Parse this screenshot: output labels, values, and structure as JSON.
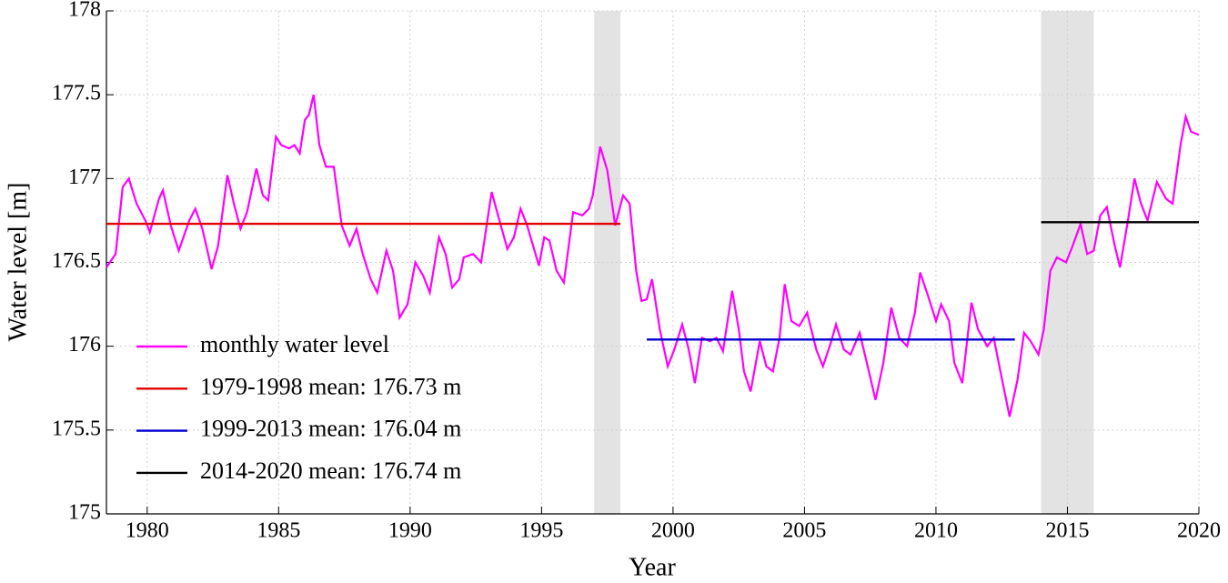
{
  "chart_data": {
    "type": "line",
    "xlabel": "Year",
    "ylabel": "Water level [m]",
    "xlim": [
      1978.45,
      2020
    ],
    "ylim": [
      175,
      178
    ],
    "xticks": [
      1980,
      1985,
      1990,
      1995,
      2000,
      2005,
      2010,
      2015,
      2020
    ],
    "yticks": [
      175,
      175.5,
      176,
      176.5,
      177,
      177.5,
      178
    ],
    "grid": true,
    "legend": "lower left",
    "shaded": [
      [
        1997,
        1998
      ],
      [
        2014,
        2016
      ]
    ],
    "shade_color": "#e3e3e3",
    "series": [
      {
        "name": "monthly water level",
        "color": "#ff00ff",
        "x": [
          1978.45,
          1978.8,
          1979.07,
          1979.3,
          1979.6,
          1979.93,
          1980.1,
          1980.45,
          1980.6,
          1980.9,
          1981.2,
          1981.6,
          1981.83,
          1982.1,
          1982.45,
          1982.7,
          1983.05,
          1983.3,
          1983.55,
          1983.8,
          1984.15,
          1984.4,
          1984.6,
          1984.9,
          1985.1,
          1985.4,
          1985.6,
          1985.8,
          1986.0,
          1986.15,
          1986.33,
          1986.55,
          1986.8,
          1987.1,
          1987.4,
          1987.7,
          1987.96,
          1988.2,
          1988.5,
          1988.75,
          1989.1,
          1989.35,
          1989.6,
          1989.9,
          1990.2,
          1990.5,
          1990.75,
          1991.1,
          1991.35,
          1991.6,
          1991.87,
          1992.04,
          1992.4,
          1992.7,
          1993.1,
          1993.4,
          1993.7,
          1993.95,
          1994.2,
          1994.45,
          1994.9,
          1995.1,
          1995.3,
          1995.57,
          1995.85,
          1996.2,
          1996.55,
          1996.8,
          1996.95,
          1997.23,
          1997.5,
          1997.8,
          1998.1,
          1998.35,
          1998.6,
          1998.8,
          1999.0,
          1999.2,
          1999.5,
          1999.8,
          2000.05,
          2000.35,
          2000.6,
          2000.83,
          2001.1,
          2001.4,
          2001.65,
          2001.9,
          2002.25,
          2002.5,
          2002.7,
          2002.95,
          2003.3,
          2003.55,
          2003.8,
          2004.05,
          2004.25,
          2004.5,
          2004.8,
          2005.1,
          2005.45,
          2005.7,
          2006.0,
          2006.2,
          2006.5,
          2006.75,
          2007.1,
          2007.45,
          2007.7,
          2008.0,
          2008.3,
          2008.6,
          2008.9,
          2009.2,
          2009.4,
          2009.7,
          2010.0,
          2010.2,
          2010.5,
          2010.7,
          2011.0,
          2011.35,
          2011.6,
          2011.95,
          2012.2,
          2012.45,
          2012.8,
          2013.1,
          2013.35,
          2013.6,
          2013.9,
          2014.1,
          2014.35,
          2014.6,
          2014.95,
          2015.2,
          2015.5,
          2015.75,
          2016.0,
          2016.25,
          2016.5,
          2016.8,
          2017.0,
          2017.3,
          2017.55,
          2017.8,
          2018.05,
          2018.4,
          2018.75,
          2019.0,
          2019.3,
          2019.5,
          2019.7,
          2020.0
        ],
        "values": [
          176.47,
          176.55,
          176.95,
          177.0,
          176.85,
          176.75,
          176.68,
          176.88,
          176.93,
          176.72,
          176.57,
          176.75,
          176.82,
          176.7,
          176.46,
          176.6,
          177.02,
          176.85,
          176.7,
          176.8,
          177.06,
          176.9,
          176.87,
          177.25,
          177.2,
          177.18,
          177.2,
          177.15,
          177.35,
          177.38,
          177.5,
          177.2,
          177.07,
          177.07,
          176.72,
          176.6,
          176.7,
          176.55,
          176.4,
          176.32,
          176.57,
          176.45,
          176.17,
          176.25,
          176.5,
          176.42,
          176.32,
          176.65,
          176.55,
          176.35,
          176.4,
          176.53,
          176.55,
          176.5,
          176.92,
          176.75,
          176.58,
          176.65,
          176.82,
          176.72,
          176.48,
          176.65,
          176.63,
          176.45,
          176.38,
          176.8,
          176.78,
          176.82,
          176.9,
          177.19,
          177.05,
          176.72,
          176.9,
          176.85,
          176.45,
          176.27,
          176.28,
          176.4,
          176.1,
          175.88,
          175.98,
          176.13,
          175.98,
          175.78,
          176.05,
          176.03,
          176.05,
          175.97,
          176.33,
          176.1,
          175.85,
          175.73,
          176.03,
          175.88,
          175.85,
          176.05,
          176.37,
          176.15,
          176.12,
          176.2,
          175.98,
          175.88,
          176.02,
          176.13,
          175.98,
          175.95,
          176.08,
          175.85,
          175.68,
          175.9,
          176.23,
          176.05,
          176.0,
          176.2,
          176.44,
          176.3,
          176.15,
          176.25,
          176.15,
          175.9,
          175.78,
          176.26,
          176.1,
          176.0,
          176.05,
          175.85,
          175.58,
          175.8,
          176.08,
          176.03,
          175.95,
          176.1,
          176.45,
          176.53,
          176.5,
          176.6,
          176.73,
          176.55,
          176.57,
          176.78,
          176.83,
          176.6,
          176.47,
          176.75,
          177.0,
          176.85,
          176.75,
          176.98,
          176.88,
          176.85,
          177.2,
          177.37,
          177.28,
          177.26
        ]
      },
      {
        "name": "1979-1998 mean: 176.73 m",
        "color": "#e00000",
        "x": [
          1978.45,
          1998
        ],
        "values": [
          176.73,
          176.73
        ]
      },
      {
        "name": "1999-2013 mean: 176.04 m",
        "color": "#0000d0",
        "x": [
          1999,
          2013
        ],
        "values": [
          176.04,
          176.04
        ]
      },
      {
        "name": "2014-2020 mean: 176.74 m",
        "color": "#000000",
        "x": [
          2014,
          2020
        ],
        "values": [
          176.74,
          176.74
        ]
      }
    ]
  }
}
